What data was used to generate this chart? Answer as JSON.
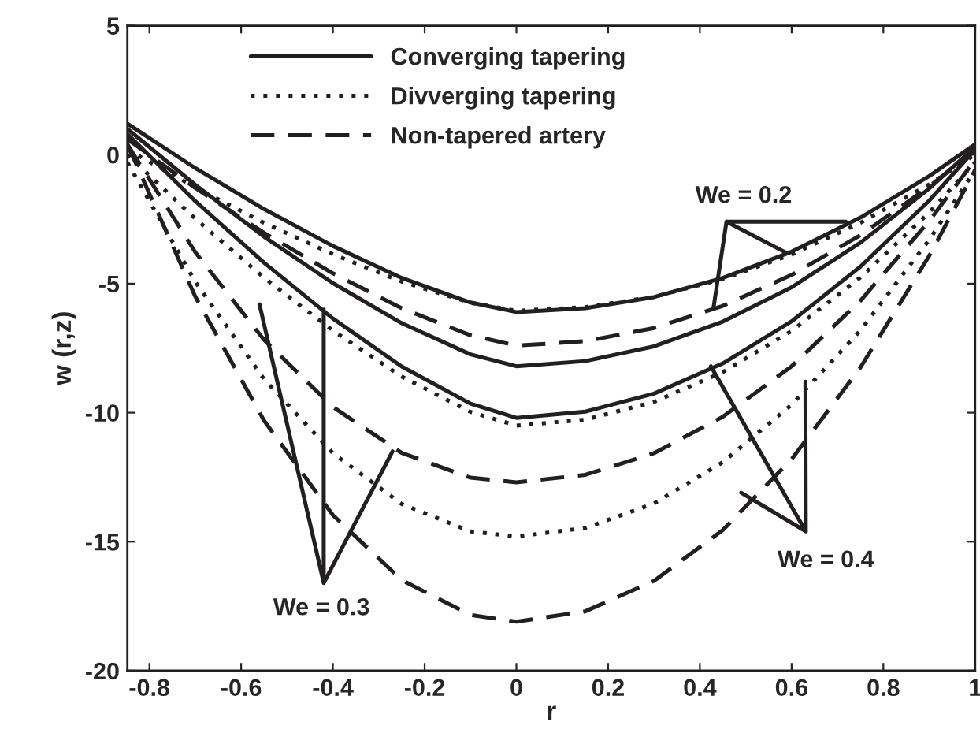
{
  "chart_data": {
    "type": "line",
    "xlabel": "r",
    "ylabel": "w (r,z)",
    "x": [
      -0.848,
      -0.7,
      -0.55,
      -0.4,
      -0.25,
      -0.1,
      0,
      0.15,
      0.3,
      0.45,
      0.6,
      0.75,
      0.9,
      1
    ],
    "series": [
      {
        "name": "Converging tapering",
        "color": "#231f20",
        "line_style": "solid",
        "values": [
          1.2,
          -0.52,
          -2.11,
          -3.54,
          -4.78,
          -5.73,
          -6.1,
          -5.95,
          -5.52,
          -4.78,
          -3.76,
          -2.44,
          -0.83,
          0.4
        ]
      },
      {
        "name": "Divverging tapering",
        "color": "#231f20",
        "line_style": "dotted",
        "values": [
          0.2,
          -1.27,
          -2.64,
          -3.86,
          -4.92,
          -5.74,
          -6.05,
          -5.91,
          -5.51,
          -4.82,
          -3.87,
          -2.64,
          -1.15,
          0.0
        ]
      },
      {
        "name": "Non-tapered artery",
        "color": "#231f20",
        "line_style": "dashed",
        "values": [
          0.6,
          -1.29,
          -3.03,
          -4.6,
          -5.95,
          -7.0,
          -7.4,
          -7.23,
          -6.72,
          -5.86,
          -4.66,
          -3.12,
          -1.24,
          0.2
        ]
      },
      {
        "color": "#231f20",
        "line_style": "solid",
        "values": [
          1.0,
          -1.17,
          -3.18,
          -4.98,
          -6.53,
          -7.74,
          -8.2,
          -8.0,
          -7.43,
          -6.47,
          -5.14,
          -3.41,
          -1.31,
          0.3
        ]
      },
      {
        "color": "#231f20",
        "line_style": "dotted",
        "values": [
          0.0,
          -2.48,
          -4.77,
          -6.82,
          -8.6,
          -9.97,
          -10.5,
          -10.27,
          -9.58,
          -8.43,
          -6.83,
          -4.76,
          -2.24,
          -0.3
        ]
      },
      {
        "color": "#231f20",
        "line_style": "dashed",
        "values": [
          0.4,
          -3.78,
          -7.18,
          -9.78,
          -11.56,
          -12.52,
          -12.7,
          -12.41,
          -11.57,
          -10.16,
          -8.2,
          -5.66,
          -2.57,
          -0.2
        ]
      },
      {
        "color": "#231f20",
        "line_style": "solid",
        "values": [
          0.8,
          -1.8,
          -4.19,
          -6.35,
          -8.21,
          -9.65,
          -10.2,
          -9.96,
          -9.26,
          -8.09,
          -6.46,
          -4.34,
          -1.78,
          0.2
        ]
      },
      {
        "color": "#231f20",
        "line_style": "dotted",
        "values": [
          -0.3,
          -4.93,
          -8.7,
          -11.57,
          -13.54,
          -14.6,
          -14.8,
          -14.47,
          -13.52,
          -11.92,
          -9.69,
          -6.81,
          -3.3,
          -0.6
        ]
      },
      {
        "color": "#231f20",
        "line_style": "dashed",
        "values": [
          0.4,
          -5.5,
          -10.31,
          -13.97,
          -16.49,
          -17.84,
          -18.1,
          -17.7,
          -16.52,
          -14.55,
          -11.8,
          -8.25,
          -3.92,
          -0.6
        ]
      }
    ],
    "xlim": [
      -0.848,
      1
    ],
    "xticks": [
      -0.8,
      -0.6,
      -0.4,
      -0.2,
      0,
      0.2,
      0.4,
      0.6,
      0.8,
      1
    ],
    "ylim": [
      -20,
      5
    ],
    "yticks": [
      -20,
      -15,
      -10,
      -5,
      0,
      5
    ],
    "legend": "top left",
    "grid": false,
    "annotations": [
      {
        "text": "We = 0.2",
        "x": 0.43,
        "y": -5.9
      },
      {
        "text": "We = 0.3",
        "x": -0.42,
        "y": -6.0
      },
      {
        "text": "We = 0.4",
        "x": 0.63,
        "y": -8.8
      }
    ]
  }
}
